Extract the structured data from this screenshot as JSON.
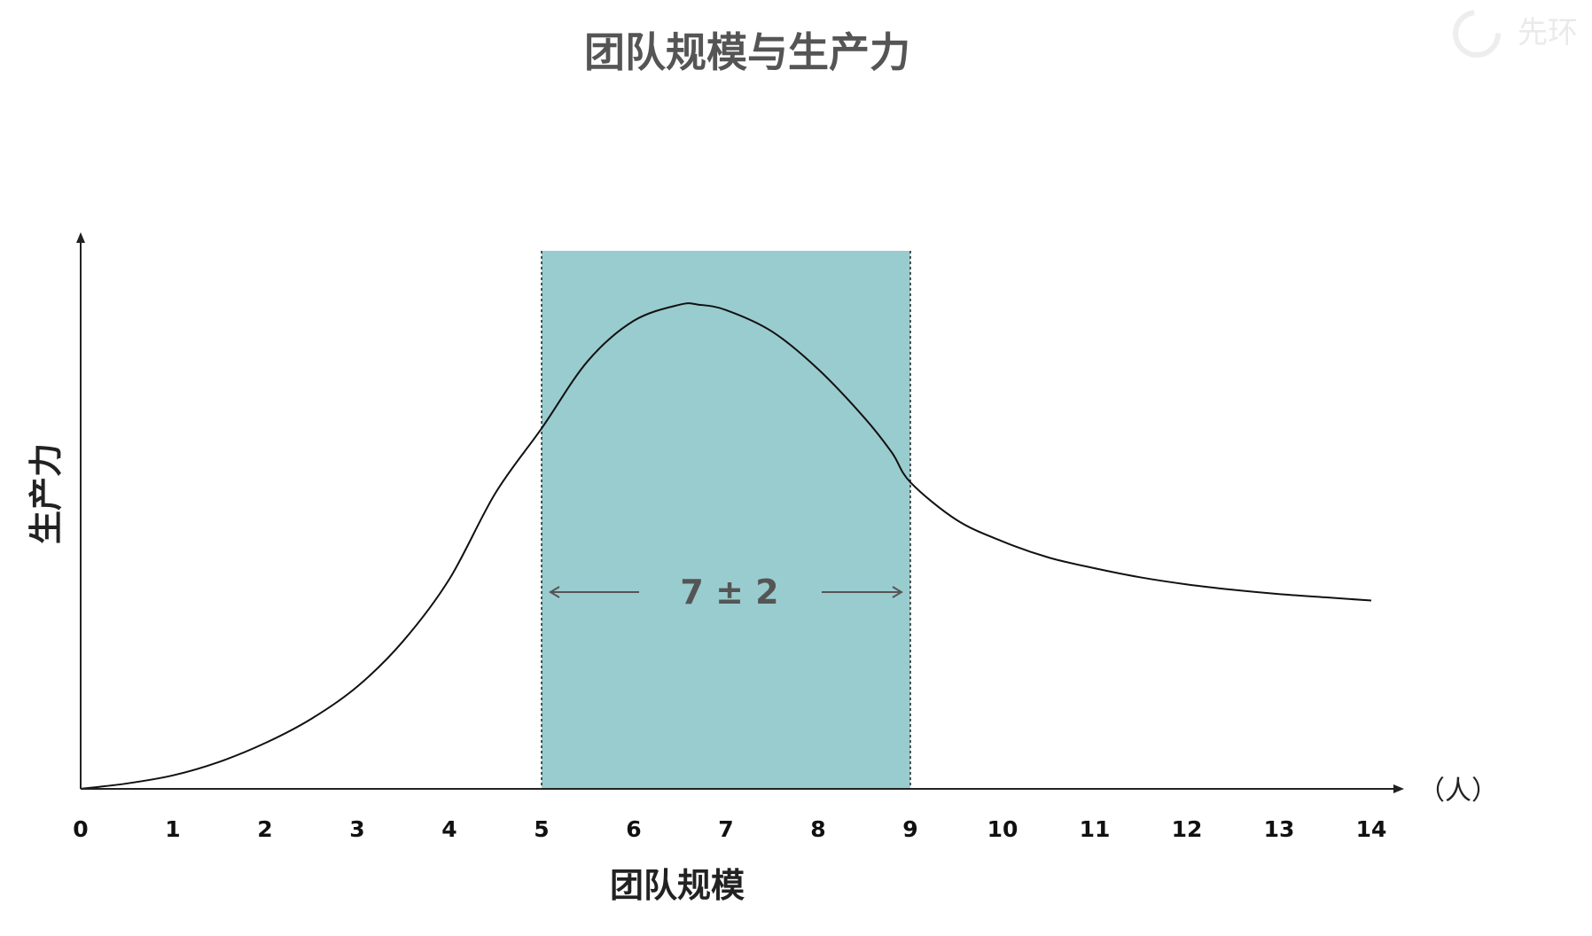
{
  "chart_data": {
    "type": "line",
    "title": "团队规模与生产力",
    "xlabel": "团队规模",
    "ylabel": "生产力",
    "x_unit": "（人）",
    "x_ticks": [
      0,
      1,
      2,
      3,
      4,
      5,
      6,
      7,
      8,
      9,
      10,
      11,
      12,
      13,
      14
    ],
    "xlim": [
      0,
      14
    ],
    "ylim": [
      0,
      1
    ],
    "grid": false,
    "series": [
      {
        "x": [
          0,
          0.5,
          1,
          1.5,
          2,
          2.5,
          3,
          3.5,
          4,
          4.5,
          5,
          5.5,
          6,
          6.5,
          6.7,
          7,
          7.5,
          8,
          8.5,
          8.8,
          9,
          9.5,
          10,
          10.5,
          11,
          11.5,
          12,
          12.5,
          13,
          13.5,
          14
        ],
        "y": [
          0.0,
          0.01,
          0.025,
          0.05,
          0.085,
          0.13,
          0.19,
          0.275,
          0.39,
          0.55,
          0.67,
          0.795,
          0.87,
          0.9,
          0.9,
          0.89,
          0.85,
          0.78,
          0.69,
          0.625,
          0.57,
          0.5,
          0.46,
          0.43,
          0.41,
          0.393,
          0.38,
          0.37,
          0.362,
          0.356,
          0.35
        ]
      }
    ],
    "highlight": {
      "x_start": 5,
      "x_end": 9,
      "y_top": 1.0,
      "color": "#99cccf",
      "label": "7 ± 2"
    }
  },
  "watermark": {
    "text": "先环"
  },
  "colors": {
    "title": "#555555",
    "axis": "#222222",
    "curve": "#111111",
    "band": "#99cccf",
    "annotation": "#555555"
  }
}
